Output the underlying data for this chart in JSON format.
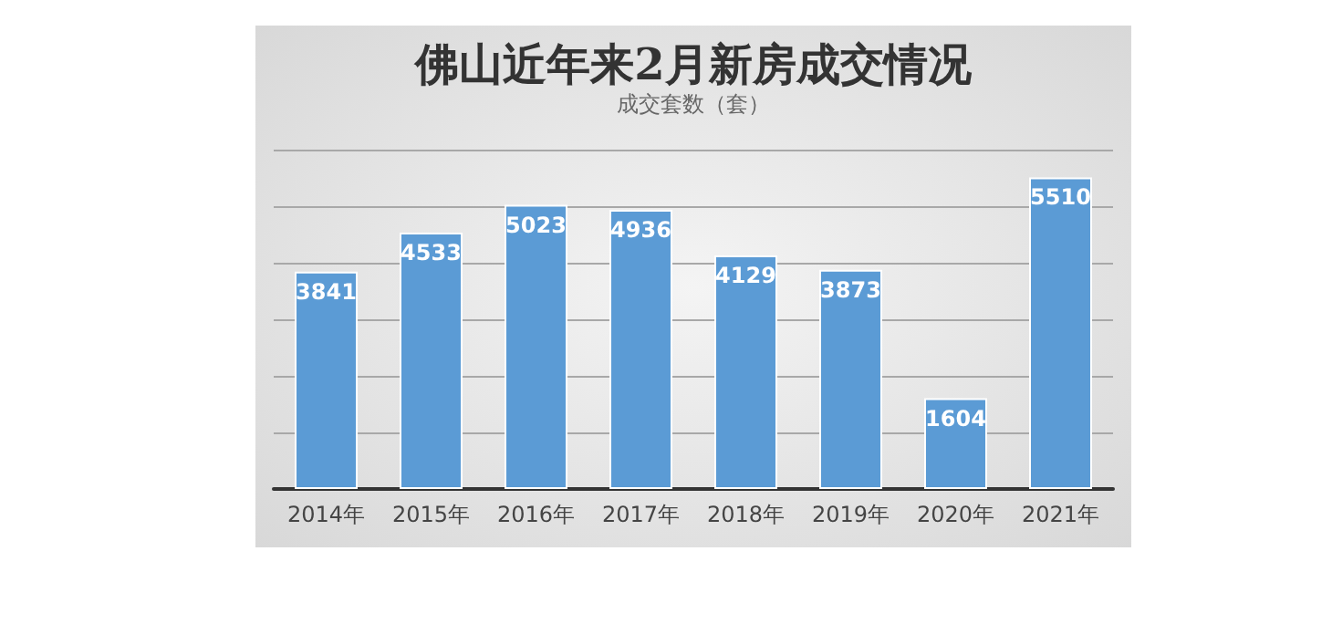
{
  "chart_data": {
    "type": "bar",
    "title": "佛山近年来2月新房成交情况",
    "subtitle": "成交套数（套）",
    "categories": [
      "2014年",
      "2015年",
      "2016年",
      "2017年",
      "2018年",
      "2019年",
      "2020年",
      "2021年"
    ],
    "values": [
      3841,
      4533,
      5023,
      4936,
      4129,
      3873,
      1604,
      5510
    ],
    "color": "#5b9bd5",
    "ylim": [
      0,
      6000
    ],
    "yticks": [
      {
        "value": 0,
        "label": null
      },
      {
        "value": 1000,
        "label": null
      },
      {
        "value": 2000,
        "label": null
      },
      {
        "value": 3000,
        "label": null
      },
      {
        "value": 4000,
        "label": null
      },
      {
        "value": 5000,
        "label": null
      },
      {
        "value": 6000,
        "label": null
      }
    ],
    "grid": "y",
    "data_labels": true,
    "tick_labels": "x"
  }
}
